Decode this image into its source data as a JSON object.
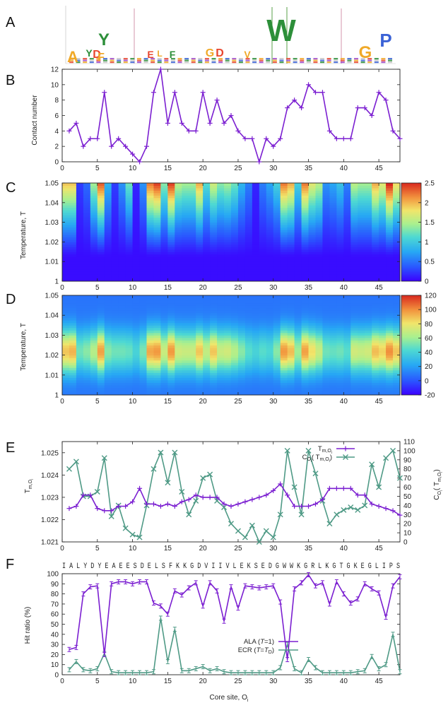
{
  "panels": {
    "A": "A",
    "B": "B",
    "C": "C",
    "D": "D",
    "E": "E",
    "F": "F"
  },
  "colors": {
    "purple": "#7b1fd1",
    "green": "#4f9a86",
    "frame": "#222222"
  },
  "chart_data": [
    {
      "panel": "A",
      "type": "other",
      "description_logo": true,
      "logo_letters": [
        "A",
        "Y",
        "D",
        "Y",
        "F",
        "E",
        "L",
        "F",
        "G",
        "D",
        "V",
        "W",
        "G",
        "P"
      ]
    },
    {
      "panel": "B",
      "type": "line",
      "ylabel": "Contact number",
      "xlim": [
        0,
        48
      ],
      "ylim": [
        0,
        12
      ],
      "xticks": [
        "0",
        "5",
        "10",
        "15",
        "20",
        "25",
        "30",
        "35",
        "40",
        "45"
      ],
      "yticks": [
        "0",
        "2",
        "4",
        "6",
        "8",
        "10",
        "12"
      ],
      "x": [
        1,
        2,
        3,
        4,
        5,
        6,
        7,
        8,
        9,
        10,
        11,
        12,
        13,
        14,
        15,
        16,
        17,
        18,
        19,
        20,
        21,
        22,
        23,
        24,
        25,
        26,
        27,
        28,
        29,
        30,
        31,
        32,
        33,
        34,
        35,
        36,
        37,
        38,
        39,
        40,
        41,
        42,
        43,
        44,
        45,
        46,
        47,
        48
      ],
      "values": [
        4,
        5,
        2,
        3,
        3,
        9,
        2,
        3,
        2,
        1,
        0,
        2,
        9,
        12,
        5,
        9,
        5,
        4,
        4,
        9,
        5,
        8,
        5,
        6,
        4,
        3,
        3,
        0,
        3,
        2,
        3,
        7,
        8,
        7,
        10,
        9,
        9,
        4,
        3,
        3,
        3,
        7,
        7,
        6,
        9,
        8,
        4,
        3
      ]
    },
    {
      "panel": "C",
      "type": "heatmap",
      "ylabel": "Temperature, T",
      "xlim": [
        0,
        48
      ],
      "ylim": [
        1.0,
        1.05
      ],
      "xticks": [
        "0",
        "5",
        "10",
        "15",
        "20",
        "25",
        "30",
        "35",
        "40",
        "45"
      ],
      "yticks": [
        "1",
        "1.01",
        "1.02",
        "1.03",
        "1.04",
        "1.05"
      ],
      "colorbar_ticks": [
        "0",
        "0.5",
        "1",
        "1.5",
        "2",
        "2.5"
      ],
      "colorbar_range": [
        0,
        2.5
      ],
      "column_max": [
        1.9,
        1.9,
        0.2,
        0.4,
        1.4,
        2.3,
        0.8,
        0.2,
        0.6,
        1.2,
        0.1,
        0.6,
        2.2,
        2.4,
        1.3,
        2.4,
        1.5,
        1.4,
        1.4,
        2.0,
        1.1,
        1.6,
        1.3,
        1.4,
        1.2,
        0.8,
        0.5,
        0.1,
        0.5,
        0.7,
        1.0,
        2.2,
        2.0,
        1.0,
        2.2,
        1.7,
        1.5,
        0.6,
        0.7,
        0.9,
        0.5,
        1.5,
        1.4,
        1.4,
        2.0,
        1.7,
        2.5,
        1.8
      ]
    },
    {
      "panel": "D",
      "type": "heatmap",
      "ylabel": "Temperature, T",
      "xlim": [
        0,
        48
      ],
      "ylim": [
        1.0,
        1.05
      ],
      "xticks": [
        "0",
        "5",
        "10",
        "15",
        "20",
        "25",
        "30",
        "35",
        "40",
        "45"
      ],
      "yticks": [
        "1",
        "1.01",
        "1.02",
        "1.03",
        "1.04",
        "1.05"
      ],
      "colorbar_ticks": [
        "-20",
        "0",
        "20",
        "40",
        "60",
        "80",
        "100",
        "120"
      ],
      "colorbar_range": [
        -20,
        120
      ],
      "peak_temperature": 1.022,
      "column_peak": [
        88,
        92,
        50,
        55,
        65,
        96,
        55,
        50,
        50,
        48,
        40,
        52,
        95,
        98,
        70,
        98,
        72,
        70,
        70,
        88,
        68,
        88,
        70,
        72,
        65,
        55,
        45,
        40,
        45,
        42,
        55,
        98,
        90,
        60,
        96,
        82,
        70,
        50,
        48,
        50,
        45,
        72,
        70,
        72,
        90,
        85,
        100,
        88
      ]
    },
    {
      "panel": "E",
      "type": "line",
      "ylabel": "T_{m,O_i}",
      "y2label": "C_{O_i}(T_{m,O_i})",
      "xlim": [
        0,
        48
      ],
      "ylim": [
        1.021,
        1.0255
      ],
      "y2lim": [
        0,
        110
      ],
      "xticks": [
        "0",
        "5",
        "10",
        "15",
        "20",
        "25",
        "30",
        "35",
        "40",
        "45"
      ],
      "yticks": [
        "1.021",
        "1.022",
        "1.023",
        "1.024",
        "1.025"
      ],
      "y2ticks": [
        "0",
        "10",
        "20",
        "30",
        "40",
        "50",
        "60",
        "70",
        "80",
        "90",
        "100",
        "110"
      ],
      "legend_position": "top-right",
      "x": [
        1,
        2,
        3,
        4,
        5,
        6,
        7,
        8,
        9,
        10,
        11,
        12,
        13,
        14,
        15,
        16,
        17,
        18,
        19,
        20,
        21,
        22,
        23,
        24,
        25,
        26,
        27,
        28,
        29,
        30,
        31,
        32,
        33,
        34,
        35,
        36,
        37,
        38,
        39,
        40,
        41,
        42,
        43,
        44,
        45,
        46,
        47,
        48
      ],
      "series": [
        {
          "name": "T_{m,O_i}",
          "axis": "left",
          "values": [
            1.0225,
            1.0226,
            1.0231,
            1.0231,
            1.0225,
            1.0224,
            1.0224,
            1.0226,
            1.0226,
            1.0228,
            1.0234,
            1.0227,
            1.0227,
            1.0226,
            1.0227,
            1.0226,
            1.0228,
            1.0229,
            1.0231,
            1.023,
            1.023,
            1.023,
            1.0227,
            1.0226,
            1.0227,
            1.0228,
            1.0229,
            1.023,
            1.0231,
            1.0233,
            1.0236,
            1.0231,
            1.0226,
            1.0226,
            1.0226,
            1.0227,
            1.0229,
            1.0234,
            1.0234,
            1.0234,
            1.0234,
            1.0231,
            1.0231,
            1.0227,
            1.0226,
            1.0225,
            1.0224,
            1.0222
          ]
        },
        {
          "name": "C_{O_i}(T_{m,O_i})",
          "axis": "right",
          "values": [
            80,
            88,
            50,
            50,
            55,
            92,
            28,
            40,
            15,
            8,
            5,
            40,
            80,
            98,
            65,
            98,
            55,
            30,
            45,
            70,
            74,
            45,
            38,
            20,
            12,
            5,
            18,
            0,
            12,
            5,
            30,
            100,
            60,
            30,
            100,
            75,
            45,
            20,
            30,
            35,
            38,
            35,
            40,
            85,
            60,
            92,
            100,
            70
          ]
        }
      ]
    },
    {
      "panel": "F",
      "type": "line",
      "sequence": "I A L Y D Y E A E E S D E L S F K K G D V I I V L E K S E D G W W K G R L K G T G K E G L I P S",
      "ylabel": "Hit ratio (%)",
      "xlabel": "Core site, O_i",
      "xlim": [
        0,
        48
      ],
      "ylim": [
        0,
        100
      ],
      "xticks": [
        "0",
        "5",
        "10",
        "15",
        "20",
        "25",
        "30",
        "35",
        "40",
        "45"
      ],
      "yticks": [
        "0",
        "10",
        "20",
        "30",
        "40",
        "50",
        "60",
        "70",
        "80",
        "90",
        "100"
      ],
      "legend_position": "center",
      "x": [
        1,
        2,
        3,
        4,
        5,
        6,
        7,
        8,
        9,
        10,
        11,
        12,
        13,
        14,
        15,
        16,
        17,
        18,
        19,
        20,
        21,
        22,
        23,
        24,
        25,
        26,
        27,
        28,
        29,
        30,
        31,
        32,
        33,
        34,
        35,
        36,
        37,
        38,
        39,
        40,
        41,
        42,
        43,
        44,
        45,
        46,
        47,
        48
      ],
      "series": [
        {
          "name": "ALA (T=1)",
          "values": [
            25,
            27,
            80,
            87,
            88,
            20,
            90,
            92,
            92,
            90,
            92,
            92,
            71,
            68,
            60,
            83,
            79,
            86,
            91,
            68,
            91,
            83,
            53,
            87,
            66,
            88,
            87,
            86,
            87,
            88,
            72,
            15,
            85,
            91,
            99,
            88,
            91,
            70,
            92,
            80,
            71,
            75,
            90,
            85,
            81,
            57,
            88,
            97
          ]
        },
        {
          "name": "ECR (T=T_D)",
          "values": [
            5,
            13,
            5,
            4,
            6,
            21,
            3,
            2,
            2,
            2,
            2,
            2,
            3,
            56,
            13,
            45,
            4,
            4,
            6,
            8,
            4,
            6,
            3,
            2,
            2,
            2,
            2,
            2,
            2,
            2,
            7,
            30,
            6,
            2,
            15,
            7,
            2,
            2,
            2,
            2,
            2,
            3,
            4,
            18,
            6,
            10,
            40,
            3
          ]
        }
      ]
    }
  ]
}
